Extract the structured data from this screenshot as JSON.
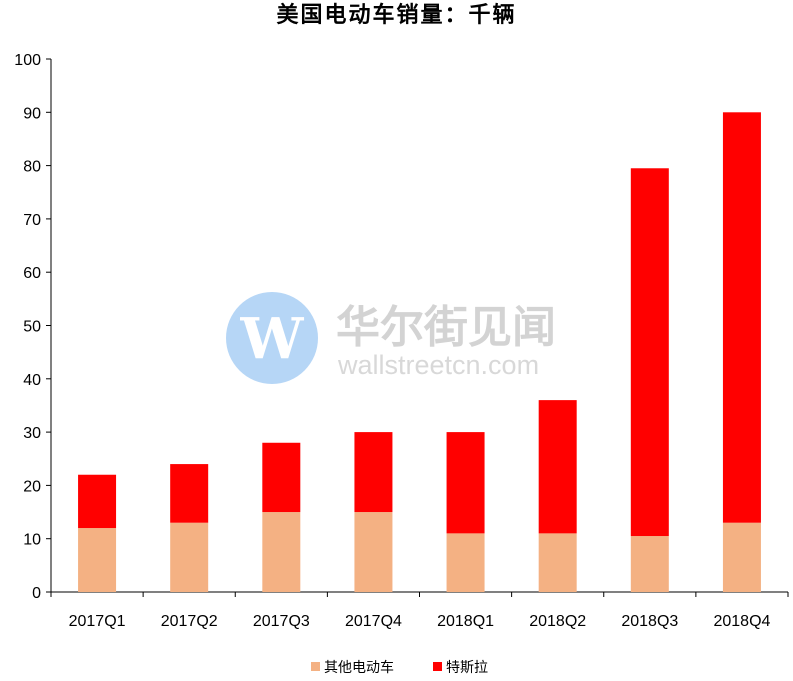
{
  "chart_data": {
    "type": "bar",
    "stacked": true,
    "title": "美国电动车销量：千辆",
    "categories": [
      "2017Q1",
      "2017Q2",
      "2017Q3",
      "2017Q4",
      "2018Q1",
      "2018Q2",
      "2018Q3",
      "2018Q4"
    ],
    "series": [
      {
        "name": "其他电动车",
        "color": "#f4b183",
        "values": [
          12,
          13,
          15,
          15,
          11,
          11,
          10.5,
          13
        ]
      },
      {
        "name": "特斯拉",
        "color": "#ff0000",
        "values": [
          10,
          11,
          13,
          15,
          19,
          25,
          69,
          77
        ]
      }
    ],
    "ylim": [
      0,
      100
    ],
    "yticks": [
      "0",
      "10",
      "20",
      "30",
      "40",
      "50",
      "60",
      "70",
      "80",
      "90",
      "100"
    ],
    "xlabel": "",
    "ylabel": "",
    "grid": false,
    "legend_position": "bottom"
  },
  "watermark": {
    "logo_letter": "W",
    "name": "华尔街见闻",
    "domain": "wallstreetcn.com",
    "logo_color": "#a9cff5"
  }
}
